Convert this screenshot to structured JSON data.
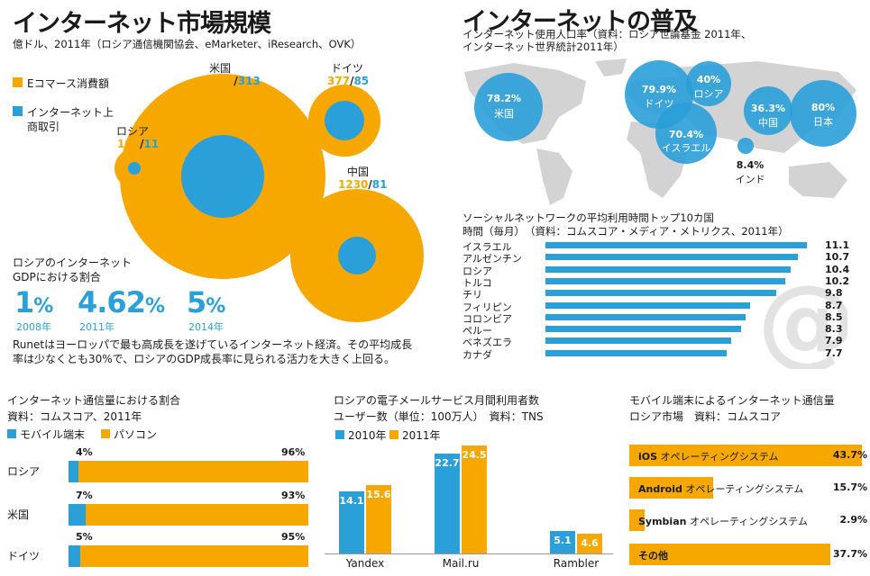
{
  "market": {
    "title": "インターネット市場規模",
    "subtitle": "億ドル、2011年（ロシア通信機関協会、eMarketer、iResearch、OVK）",
    "legend": {
      "ecommerce": "Eコマース消費額",
      "ads_line1": "インターネット上",
      "ads_line2": "商取引"
    },
    "countries": [
      {
        "name": "米国",
        "ecommerce": "1950",
        "ads": "313"
      },
      {
        "name": "ドイツ",
        "ecommerce": "377",
        "ads": "85"
      },
      {
        "name": "ロシア",
        "ecommerce": "100",
        "ads": "11"
      },
      {
        "name": "中国",
        "ecommerce": "1230",
        "ads": "81"
      }
    ]
  },
  "gdp": {
    "title_line1": "ロシアのインターネット",
    "title_line2": "GDPにおける割合",
    "values": [
      {
        "num": "1",
        "pct": "%",
        "year": "2008年"
      },
      {
        "num": "4.62",
        "pct": "%",
        "year": "2011年"
      },
      {
        "num": "5",
        "pct": "%",
        "year": "2014年"
      }
    ],
    "note_line1": "Runetはヨーロッパで最も高成長を遂げているインターネット経済。その平均成長",
    "note_line2": "率は少なくとも30%で、ロシアのGDP成長率に見られる活力を大きく上回る。"
  },
  "penetration": {
    "title": "インターネットの普及",
    "subtitle_line1": "インターネット使用人口率（資料：ロシア世論基金 2011年、",
    "subtitle_line2": "インターネット世界統計2011年）",
    "bubbles": [
      {
        "value": "78.2%",
        "name": "米国"
      },
      {
        "value": "79.9%",
        "name": "ドイツ"
      },
      {
        "value": "40%",
        "name": "ロシア"
      },
      {
        "value": "70.4%",
        "name": "イスラエル"
      },
      {
        "value": "36.3%",
        "name": "中国"
      },
      {
        "value": "80%",
        "name": "日本"
      },
      {
        "value": "8.4%",
        "name": "インド"
      }
    ]
  },
  "social": {
    "title": "ソーシャルネットワークの平均利用時間トップ10カ国",
    "subtitle": "時間（毎月）　（資料：コムスコア・メディア・メトリクス、2011年）"
  },
  "traffic": {
    "title": "インターネット通信量における割合",
    "subtitle": "資料：コムスコア、2011年",
    "legend": {
      "mobile": "モバイル端末",
      "pc": "パソコン"
    }
  },
  "email": {
    "title": "ロシアの電子メールサービス月間利用者数",
    "subtitle": "ユーザー数（単位：100万人）　資料：TNS",
    "legend": {
      "y2010": "2010年",
      "y2011": "2011年"
    }
  },
  "mobile_os": {
    "title": "モバイル端末によるインターネット通信量",
    "subtitle": "ロシア市場　資料：コムスコア"
  },
  "colors": {
    "orange": "#f7a800",
    "blue": "#2a9fd8",
    "map": "#d3d3d3"
  },
  "chart_data": [
    {
      "type": "bar",
      "title": "ソーシャルネットワークの平均利用時間トップ10カ国",
      "categories": [
        "イスラエル",
        "アルゼンチン",
        "ロシア",
        "トルコ",
        "チリ",
        "フィリピン",
        "コロンビア",
        "ペルー",
        "ベネズエラ",
        "カナダ"
      ],
      "values": [
        11.1,
        10.7,
        10.4,
        10.2,
        9.8,
        8.7,
        8.5,
        8.3,
        7.9,
        7.7
      ],
      "xlim": [
        0,
        11.1
      ]
    },
    {
      "type": "bar",
      "title": "インターネット通信量における割合",
      "categories": [
        "ロシア",
        "米国",
        "ドイツ"
      ],
      "series": [
        {
          "name": "モバイル端末",
          "values": [
            4,
            7,
            5
          ]
        },
        {
          "name": "パソコン",
          "values": [
            96,
            93,
            95
          ]
        }
      ]
    },
    {
      "type": "bar",
      "title": "ロシアの電子メールサービス月間利用者数",
      "categories": [
        "Yandex",
        "Mail.ru",
        "Rambler"
      ],
      "series": [
        {
          "name": "2010年",
          "values": [
            14.1,
            22.7,
            5.1
          ]
        },
        {
          "name": "2011年",
          "values": [
            15.6,
            24.5,
            4.6
          ]
        }
      ],
      "ylim": [
        0,
        25
      ]
    },
    {
      "type": "bar",
      "title": "モバイル端末によるインターネット通信量",
      "categories": [
        "iOS",
        "Android",
        "Symbian",
        "その他"
      ],
      "suffix": "オペレーティングシステム",
      "values": [
        43.7,
        15.7,
        2.9,
        37.7
      ],
      "value_labels": [
        "43.7%",
        "15.7%",
        "2.9%",
        "37.7%"
      ]
    }
  ]
}
